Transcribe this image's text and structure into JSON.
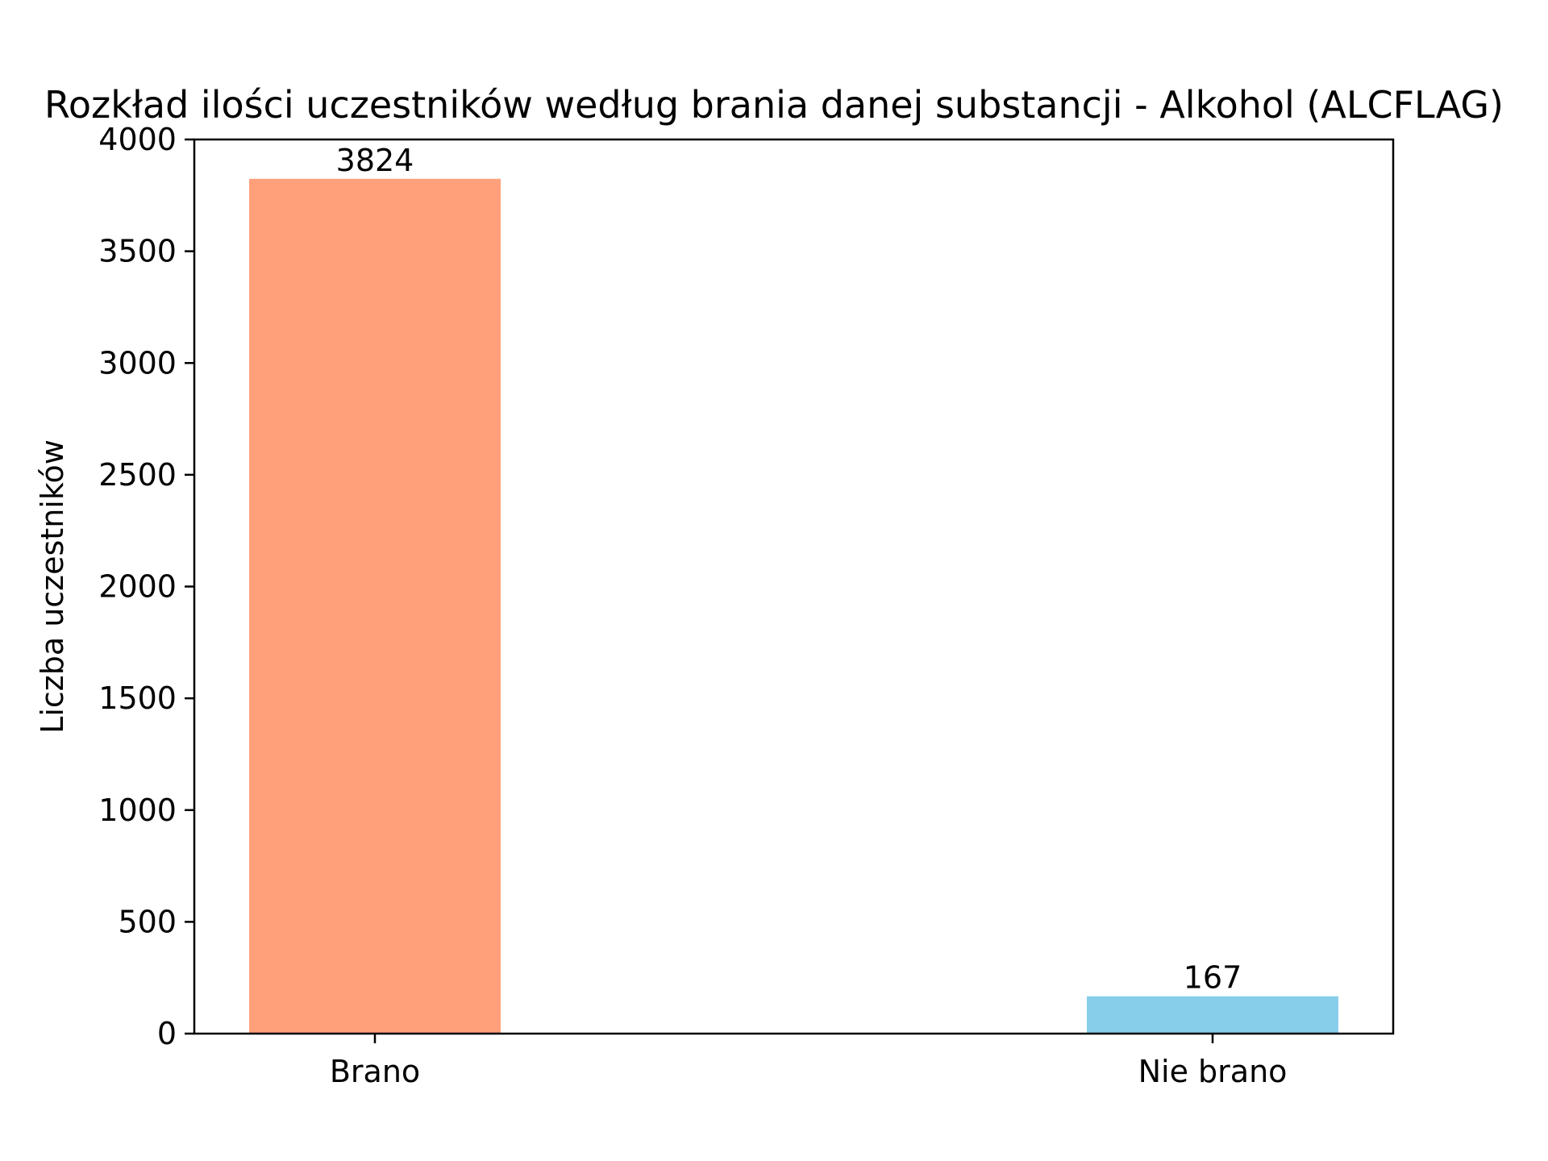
{
  "chart_data": {
    "type": "bar",
    "title": "Rozkład ilości uczestników według brania danej substancji - Alkohol (ALCFLAG)",
    "xlabel": "",
    "ylabel": "Liczba uczestników",
    "categories": [
      "Brano",
      "Nie brano"
    ],
    "values": [
      3824,
      167
    ],
    "data_labels": [
      "3824",
      "167"
    ],
    "colors": [
      "#FFA07A",
      "#87CEEB"
    ],
    "ylim": [
      0,
      4000
    ],
    "yticks": [
      0,
      500,
      1000,
      1500,
      2000,
      2500,
      3000,
      3500,
      4000
    ],
    "grid": false,
    "legend": "none"
  }
}
